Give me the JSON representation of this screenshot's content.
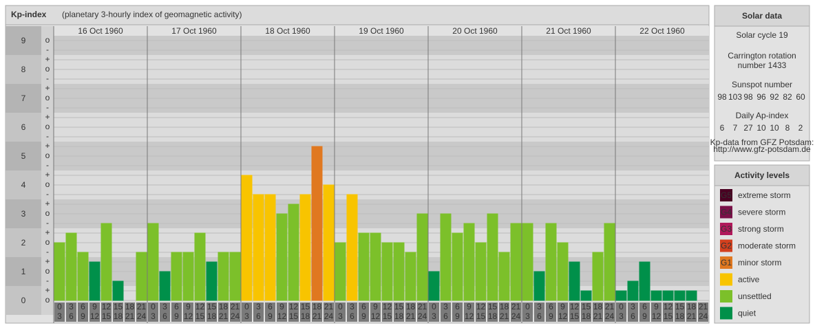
{
  "chart_data": {
    "type": "bar",
    "title": "Kp-index",
    "subtitle": "(planetary 3-hourly index of geomagnetic activity)",
    "days": [
      "16 Oct 1960",
      "17 Oct 1960",
      "18 Oct 1960",
      "19 Oct 1960",
      "20 Oct 1960",
      "21 Oct 1960",
      "22 Oct 1960"
    ],
    "intervals": [
      [
        "0",
        "3"
      ],
      [
        "3",
        "6"
      ],
      [
        "6",
        "9"
      ],
      [
        "9",
        "12"
      ],
      [
        "12",
        "15"
      ],
      [
        "15",
        "18"
      ],
      [
        "18",
        "21"
      ],
      [
        "21",
        "24"
      ]
    ],
    "values": [
      2,
      2.333,
      1.667,
      1.333,
      2.667,
      0.667,
      0,
      1.667,
      2.667,
      1,
      1.667,
      1.667,
      2.333,
      1.333,
      1.667,
      1.667,
      4.333,
      3.667,
      3.667,
      3,
      3.333,
      3.667,
      5.333,
      4,
      2,
      3.667,
      2.333,
      2.333,
      2,
      2,
      1.667,
      3,
      1,
      3,
      2.333,
      2.667,
      2,
      3,
      1.667,
      2.667,
      2.667,
      1,
      2.667,
      2,
      1.333,
      0.333,
      1.667,
      2.667,
      0.333,
      0.667,
      1.333,
      0.333,
      0.333,
      0.333,
      0.333,
      0
    ],
    "colors": [
      "#7cc02a",
      "#7cc02a",
      "#7cc02a",
      "#00904a",
      "#7cc02a",
      "#00904a",
      "#00904a",
      "#7cc02a",
      "#7cc02a",
      "#00904a",
      "#7cc02a",
      "#7cc02a",
      "#7cc02a",
      "#00904a",
      "#7cc02a",
      "#7cc02a",
      "#f8c400",
      "#f8c400",
      "#f8c400",
      "#7cc02a",
      "#7cc02a",
      "#f8c400",
      "#e07820",
      "#f8c400",
      "#7cc02a",
      "#f8c400",
      "#7cc02a",
      "#7cc02a",
      "#7cc02a",
      "#7cc02a",
      "#7cc02a",
      "#7cc02a",
      "#00904a",
      "#7cc02a",
      "#7cc02a",
      "#7cc02a",
      "#7cc02a",
      "#7cc02a",
      "#7cc02a",
      "#7cc02a",
      "#7cc02a",
      "#00904a",
      "#7cc02a",
      "#7cc02a",
      "#00904a",
      "#00904a",
      "#7cc02a",
      "#7cc02a",
      "#00904a",
      "#00904a",
      "#00904a",
      "#00904a",
      "#00904a",
      "#00904a",
      "#00904a",
      "#00904a"
    ],
    "ylim": [
      0,
      9.5
    ],
    "yticks": [
      0,
      1,
      2,
      3,
      4,
      5,
      6,
      7,
      8,
      9
    ],
    "yticks_minor": [
      {
        "value": 0,
        "label": "o"
      },
      {
        "value": 0.333,
        "label": "+"
      },
      {
        "value": 0.667,
        "label": "-"
      },
      {
        "value": 1,
        "label": "o"
      },
      {
        "value": 1.333,
        "label": "+"
      },
      {
        "value": 1.667,
        "label": "-"
      },
      {
        "value": 2,
        "label": "o"
      },
      {
        "value": 2.333,
        "label": "+"
      },
      {
        "value": 2.667,
        "label": "-"
      },
      {
        "value": 3,
        "label": "o"
      },
      {
        "value": 3.333,
        "label": "+"
      },
      {
        "value": 3.667,
        "label": "-"
      },
      {
        "value": 4,
        "label": "o"
      },
      {
        "value": 4.333,
        "label": "+"
      },
      {
        "value": 4.667,
        "label": "-"
      },
      {
        "value": 5,
        "label": "o"
      },
      {
        "value": 5.333,
        "label": "+"
      },
      {
        "value": 5.667,
        "label": "-"
      },
      {
        "value": 6,
        "label": "o"
      },
      {
        "value": 6.333,
        "label": "+"
      },
      {
        "value": 6.667,
        "label": "-"
      },
      {
        "value": 7,
        "label": "o"
      },
      {
        "value": 7.333,
        "label": "+"
      },
      {
        "value": 7.667,
        "label": "-"
      },
      {
        "value": 8,
        "label": "o"
      },
      {
        "value": 8.333,
        "label": "+"
      },
      {
        "value": 8.667,
        "label": "-"
      },
      {
        "value": 9,
        "label": "o"
      }
    ],
    "grid": true
  },
  "sidebar": {
    "solar_title": "Solar data",
    "solar_cycle": "Solar cycle 19",
    "carrington": [
      "Carrington rotation",
      "number 1433"
    ],
    "sunspot_title": "Sunspot number",
    "sunspot_values": [
      98,
      103,
      98,
      96,
      92,
      82,
      60
    ],
    "ap_title": "Daily Ap-index",
    "ap_values": [
      6,
      7,
      27,
      10,
      10,
      8,
      2
    ],
    "source": [
      "Kp-data from GFZ Potsdam:",
      "http://www.gfz-potsdam.de"
    ],
    "levels_title": "Activity levels",
    "levels": [
      {
        "code": "G5",
        "name": "extreme storm",
        "color": "#4a0022"
      },
      {
        "code": "G4",
        "name": "severe storm",
        "color": "#7a1048"
      },
      {
        "code": "G3",
        "name": "strong storm",
        "color": "#b0185a"
      },
      {
        "code": "G2",
        "name": "moderate storm",
        "color": "#d2401e"
      },
      {
        "code": "G1",
        "name": "minor storm",
        "color": "#e07820"
      },
      {
        "code": "",
        "name": "active",
        "color": "#f8c400"
      },
      {
        "code": "",
        "name": "unsettled",
        "color": "#7cc02a"
      },
      {
        "code": "",
        "name": "quiet",
        "color": "#00904a"
      }
    ]
  }
}
